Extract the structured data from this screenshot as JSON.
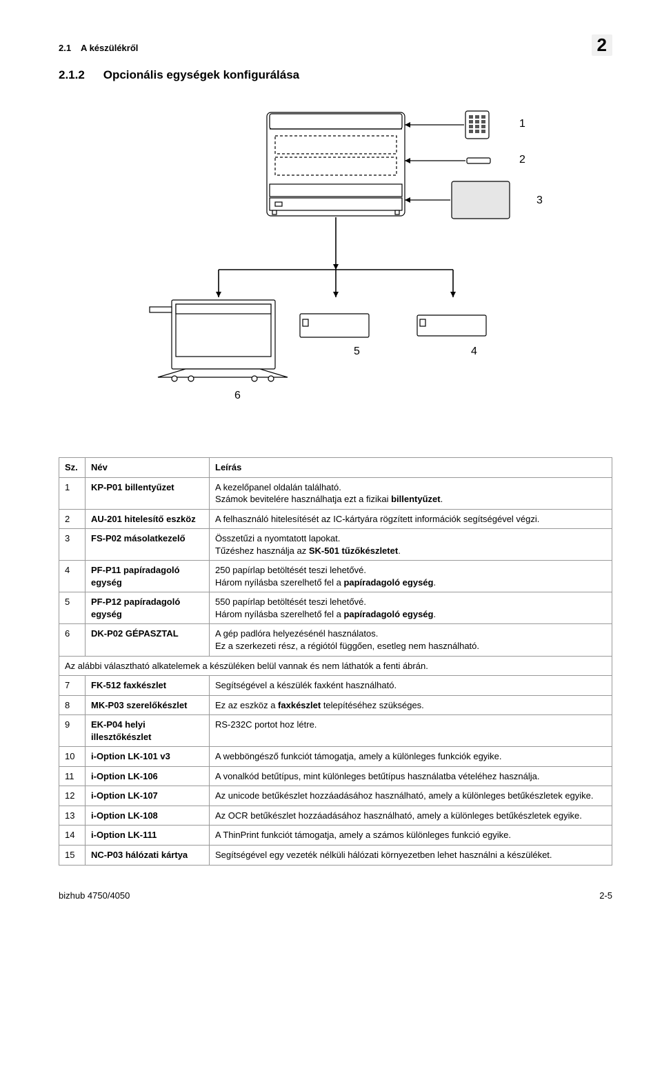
{
  "header": {
    "section_ref": "2.1",
    "section_ref_title": "A készülékről",
    "chapter_num": "2",
    "subsection_num": "2.1.2",
    "subsection_title": "Opcionális egységek konfigurálása"
  },
  "diagram": {
    "callouts": [
      "1",
      "2",
      "3",
      "4",
      "5",
      "6"
    ],
    "lines_color": "#000000",
    "bg_color": "#ffffff"
  },
  "table": {
    "headers": {
      "sz": "Sz.",
      "nev": "Név",
      "leiras": "Leírás"
    },
    "rows": [
      {
        "sz": "1",
        "nev": "KP-P01 billentyűzet",
        "leiras_html": "A kezelőpanel oldalán található.<br>Számok bevitelére használhatja ezt a fizikai <b>billentyűzet</b>."
      },
      {
        "sz": "2",
        "nev": "AU-201 hitelesítő eszköz",
        "leiras_html": "A felhasználó hitelesítését az IC-kártyára rögzített információk segítségével végzi."
      },
      {
        "sz": "3",
        "nev": "FS-P02 másolatkezelő",
        "leiras_html": "Összetűzi a nyomtatott lapokat.<br>Tűzéshez használja az <b>SK-501 tűzőkészletet</b>."
      },
      {
        "sz": "4",
        "nev": "PF-P11 papíradagoló egység",
        "leiras_html": "250 papírlap betöltését teszi lehetővé.<br>Három nyílásba szerelhető fel a <b>papíradagoló egység</b>."
      },
      {
        "sz": "5",
        "nev": "PF-P12 papíradagoló egység",
        "leiras_html": "550 papírlap betöltését teszi lehetővé.<br>Három nyílásba szerelhető fel a <b>papíradagoló egység</b>."
      },
      {
        "sz": "6",
        "nev": "DK-P02 GÉPASZTAL",
        "leiras_html": "A gép padlóra helyezésénél használatos.<br>Ez a szerkezeti rész, a régiótól függően, esetleg nem használható."
      },
      {
        "span": true,
        "leiras_html": "Az alábbi választható alkatelemek a készüléken belül vannak és nem láthatók a fenti ábrán."
      },
      {
        "sz": "7",
        "nev": "FK-512 faxkészlet",
        "leiras_html": "Segítségével a készülék faxként használható."
      },
      {
        "sz": "8",
        "nev": "MK-P03 szerelőkészlet",
        "leiras_html": "Ez az eszköz a <b>faxkészlet</b> telepítéséhez szükséges."
      },
      {
        "sz": "9",
        "nev": "EK-P04 helyi illesztőkészlet",
        "leiras_html": "RS-232C portot hoz létre."
      },
      {
        "sz": "10",
        "nev": "i-Option LK-101 v3",
        "leiras_html": "A webböngésző funkciót támogatja, amely a különleges funkciók egyike."
      },
      {
        "sz": "11",
        "nev": "i-Option LK-106",
        "leiras_html": "A vonalkód betűtípus, mint különleges betűtípus használatba vételéhez használja."
      },
      {
        "sz": "12",
        "nev": "i-Option LK-107",
        "leiras_html": "Az unicode betűkészlet hozzáadásához használható, amely a különleges betűkészletek egyike."
      },
      {
        "sz": "13",
        "nev": "i-Option LK-108",
        "leiras_html": "Az OCR betűkészlet hozzáadásához használható, amely a különleges betűkészletek egyike."
      },
      {
        "sz": "14",
        "nev": "i-Option LK-111",
        "leiras_html": "A ThinPrint funkciót támogatja, amely a számos különleges funkció egyike."
      },
      {
        "sz": "15",
        "nev": "NC-P03 hálózati kártya",
        "leiras_html": "Segítségével egy vezeték nélküli hálózati környezetben lehet használni a készüléket."
      }
    ]
  },
  "footer": {
    "left": "bizhub 4750/4050",
    "right": "2-5"
  }
}
